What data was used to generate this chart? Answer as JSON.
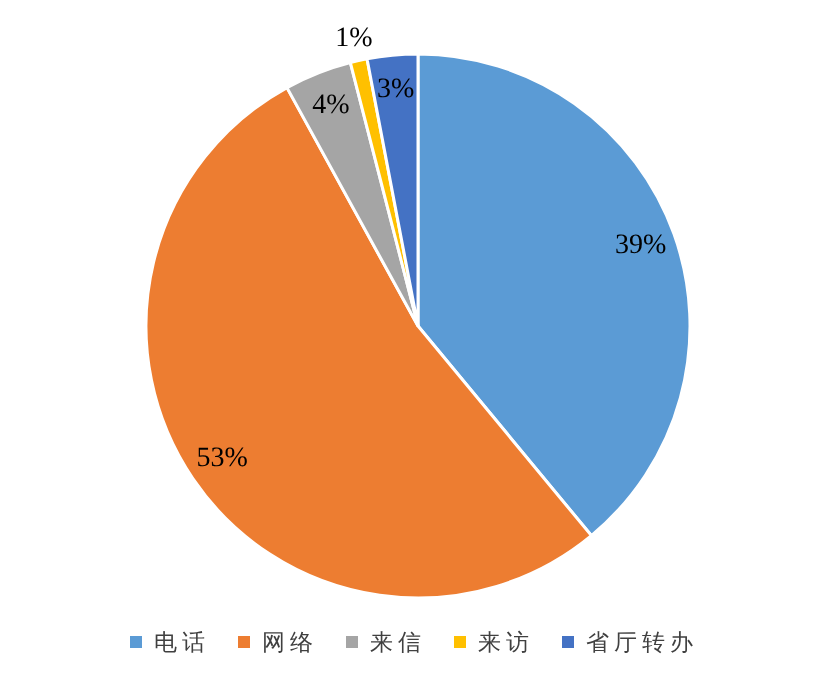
{
  "chart_data": {
    "type": "pie",
    "categories": [
      "电话",
      "网络",
      "来信",
      "来访",
      "省厅转办"
    ],
    "values": [
      39,
      53,
      4,
      1,
      3
    ],
    "colors": [
      "#5b9bd5",
      "#ed7d31",
      "#a5a5a5",
      "#ffc000",
      "#4472c4"
    ],
    "value_labels": [
      "39%",
      "53%",
      "4%",
      "1%",
      "3%"
    ],
    "legend": "bottom"
  }
}
